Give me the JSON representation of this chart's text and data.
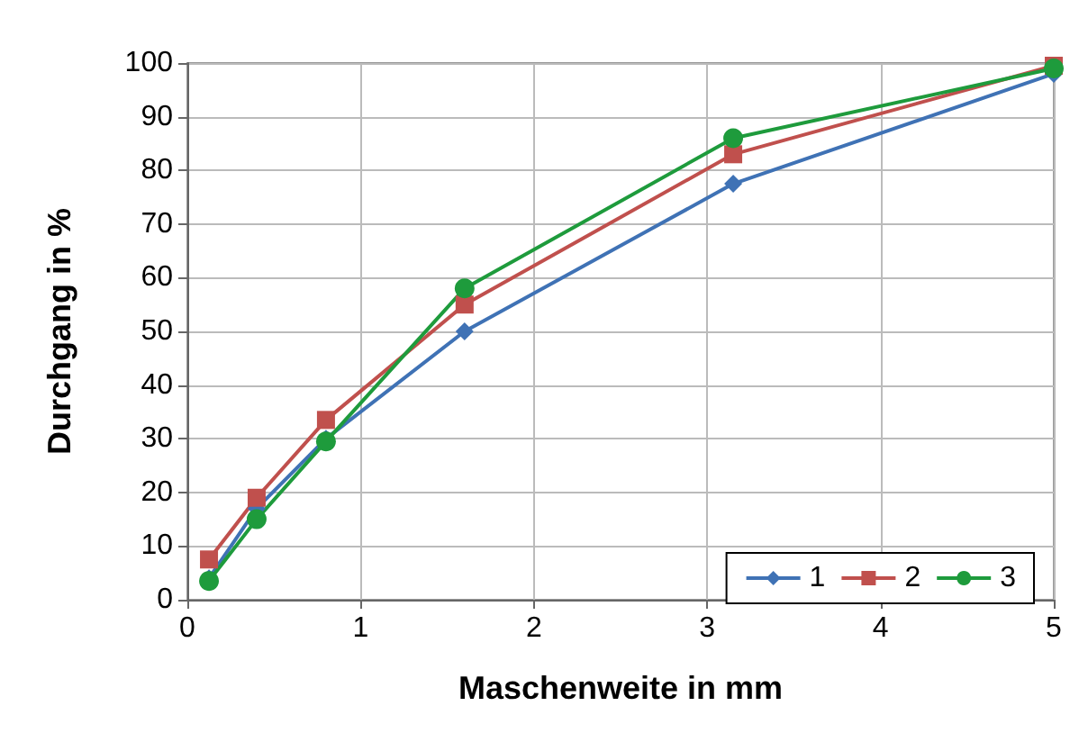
{
  "chart_data": {
    "type": "line",
    "xlabel": "Maschenweite in mm",
    "ylabel": "Durchgang in %",
    "xlim": [
      0,
      5
    ],
    "xticks": [
      0,
      1,
      2,
      3,
      4,
      5
    ],
    "ylim": [
      0,
      100
    ],
    "yticks": [
      0,
      10,
      20,
      30,
      40,
      50,
      60,
      70,
      80,
      90,
      100
    ],
    "grid": true,
    "legend": "bottom right",
    "line_style": "solid",
    "series": [
      {
        "name": "1",
        "color": "#3f72b5",
        "marker": "diamond",
        "x": [
          0.125,
          0.4,
          0.8,
          1.6,
          3.15,
          5
        ],
        "values": [
          4,
          17,
          30,
          50,
          77.5,
          98
        ]
      },
      {
        "name": "2",
        "color": "#c0504d",
        "marker": "square",
        "x": [
          0.125,
          0.4,
          0.8,
          1.6,
          3.15,
          5
        ],
        "values": [
          7.5,
          19,
          33.5,
          55,
          83,
          99.5
        ]
      },
      {
        "name": "3",
        "color": "#1e9b3c",
        "marker": "circle",
        "x": [
          0.125,
          0.4,
          0.8,
          1.6,
          3.15,
          5
        ],
        "values": [
          3.5,
          15,
          29.5,
          58,
          86,
          99
        ]
      }
    ]
  }
}
